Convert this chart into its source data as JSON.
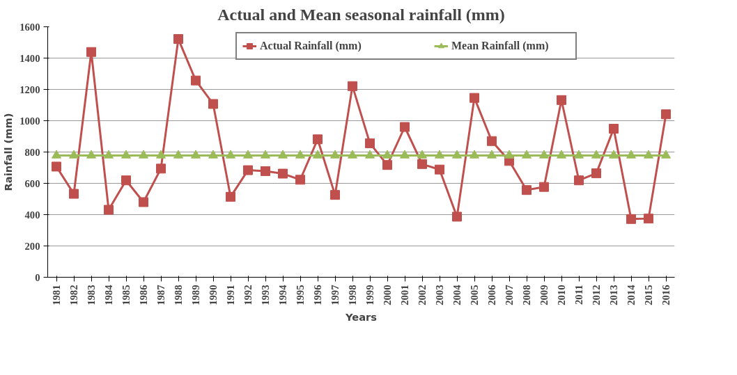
{
  "chart_data": {
    "type": "line",
    "title": "Actual and Mean seasonal rainfall (mm)",
    "xlabel": "Years",
    "ylabel": "Rainfall (mm)",
    "categories": [
      "1981",
      "1982",
      "1983",
      "1984",
      "1985",
      "1986",
      "1987",
      "1988",
      "1989",
      "1990",
      "1991",
      "1992",
      "1993",
      "1994",
      "1995",
      "1996",
      "1997",
      "1998",
      "1999",
      "2000",
      "2001",
      "2002",
      "2003",
      "2004",
      "2005",
      "2006",
      "2007",
      "2008",
      "2009",
      "2010",
      "2011",
      "2012",
      "2013",
      "2014",
      "2015",
      "2016"
    ],
    "series": [
      {
        "name": "Actual Rainfall (mm)",
        "color": "#c0504d",
        "marker": "square",
        "values": [
          707,
          533,
          1439,
          431,
          619,
          480,
          694,
          1522,
          1257,
          1107,
          514,
          684,
          678,
          662,
          623,
          881,
          526,
          1221,
          856,
          717,
          960,
          723,
          688,
          387,
          1146,
          870,
          743,
          557,
          577,
          1132,
          619,
          664,
          949,
          372,
          375,
          1041
        ]
      },
      {
        "name": "Mean Rainfall (mm)",
        "color": "#9bbb59",
        "marker": "triangle",
        "values": [
          778,
          778,
          778,
          778,
          778,
          778,
          778,
          778,
          778,
          778,
          778,
          778,
          778,
          778,
          778,
          778,
          778,
          778,
          778,
          778,
          778,
          778,
          778,
          778,
          778,
          778,
          778,
          778,
          778,
          778,
          778,
          778,
          778,
          778,
          778,
          778
        ]
      }
    ],
    "ylim": [
      0,
      1600
    ],
    "yticks": [
      0,
      200,
      400,
      600,
      800,
      1000,
      1200,
      1400,
      1600
    ],
    "grid": "y",
    "legend": "top",
    "line_style": "solid"
  }
}
